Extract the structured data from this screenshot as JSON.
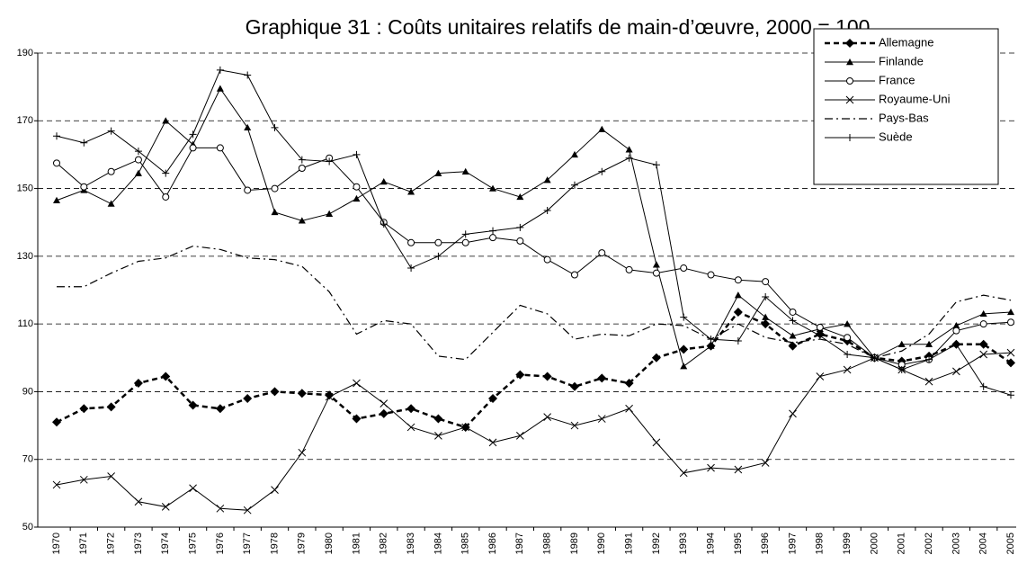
{
  "chart_data": {
    "type": "line",
    "title": "Graphique 31 : Coûts unitaires relatifs de main-d’œuvre, 2000 = 100",
    "categories": [
      "1970",
      "1971",
      "1972",
      "1973",
      "1974",
      "1975",
      "1976",
      "1977",
      "1978",
      "1979",
      "1980",
      "1981",
      "1982",
      "1983",
      "1984",
      "1985",
      "1986",
      "1987",
      "1988",
      "1989",
      "1990",
      "1991",
      "1992",
      "1993",
      "1994",
      "1995",
      "1996",
      "1997",
      "1998",
      "1999",
      "2000",
      "2001",
      "2002",
      "2003",
      "2004",
      "2005"
    ],
    "ylim": [
      50,
      190
    ],
    "yticks": [
      50,
      70,
      90,
      110,
      130,
      150,
      170,
      190
    ],
    "grid": true,
    "legend": "top-right",
    "series": [
      {
        "name": "Allemagne",
        "color": "#000000",
        "marker": "diamond",
        "dash": "dashed",
        "width": 2.5,
        "values": [
          81,
          85,
          85.5,
          92.5,
          94.5,
          86,
          85,
          88,
          90,
          89.5,
          89,
          82,
          83.5,
          85,
          82,
          79.5,
          88,
          95,
          94.5,
          91.5,
          94,
          92.5,
          100,
          102.5,
          103.5,
          113.5,
          110,
          103.5,
          107,
          105,
          100,
          99,
          100.5,
          104,
          104,
          98.5
        ]
      },
      {
        "name": "Finlande",
        "color": "#000000",
        "marker": "triangle",
        "dash": "solid",
        "width": 1,
        "values": [
          146.5,
          149.5,
          145.5,
          154.5,
          170,
          163,
          179.5,
          168,
          143,
          140.5,
          142.5,
          147,
          152,
          149,
          154.5,
          155,
          150,
          147.5,
          152.5,
          160,
          167.5,
          161.5,
          127.5,
          97.5,
          103.5,
          118.5,
          112,
          106.5,
          108.5,
          110,
          100,
          104,
          104,
          109.5,
          113,
          113.5
        ]
      },
      {
        "name": "France",
        "color": "#000000",
        "marker": "circle",
        "dash": "solid",
        "width": 1,
        "values": [
          157.5,
          150.5,
          155,
          158.5,
          147.5,
          162,
          162,
          149.5,
          150,
          156,
          159,
          150.5,
          140,
          134,
          134,
          134,
          135.5,
          134.5,
          129,
          124.5,
          131,
          126,
          125,
          126.5,
          124.5,
          123,
          122.5,
          113.5,
          109,
          106,
          100,
          98,
          99.5,
          108,
          110,
          110.5
        ]
      },
      {
        "name": "Royaume-Uni",
        "color": "#000000",
        "marker": "cross",
        "dash": "solid",
        "width": 1,
        "values": [
          62.5,
          64,
          65,
          57.5,
          56,
          61.5,
          55.5,
          55,
          61,
          72,
          88.5,
          92.5,
          86.5,
          79.5,
          77,
          79.5,
          75,
          77,
          82.5,
          80,
          82,
          85,
          75,
          66,
          67.5,
          67,
          69,
          83.5,
          94.5,
          96.5,
          100,
          96.5,
          93,
          96,
          101,
          101.5
        ]
      },
      {
        "name": "Pays-Bas",
        "color": "#000000",
        "marker": "none",
        "dash": "dashdot",
        "width": 1.2,
        "values": [
          121,
          121,
          125,
          128.5,
          129.5,
          133,
          132,
          129.5,
          129,
          127,
          119.5,
          107,
          111,
          110,
          100.5,
          99.5,
          107.5,
          115.5,
          113,
          105.5,
          107,
          106.5,
          110,
          109.5,
          105.5,
          110,
          106,
          104.5,
          105.5,
          104,
          100,
          102,
          107,
          116.5,
          118.5,
          117
        ]
      },
      {
        "name": "Suède",
        "color": "#000000",
        "marker": "plus",
        "dash": "solid",
        "width": 1,
        "values": [
          165.5,
          163.5,
          167,
          161,
          154.5,
          166,
          185,
          183.5,
          168,
          158.5,
          158,
          160,
          139.5,
          126.5,
          130,
          136.5,
          137.5,
          138.5,
          143.5,
          151,
          155,
          159,
          157,
          112,
          105.5,
          105,
          118,
          111,
          106.5,
          101,
          100,
          96.5,
          99.5,
          104,
          91.5,
          89
        ]
      }
    ]
  }
}
